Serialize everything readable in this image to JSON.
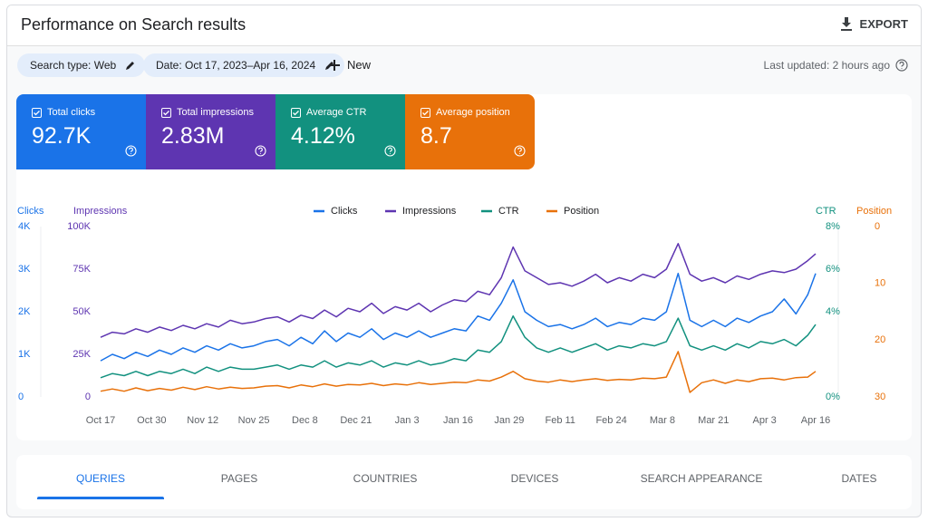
{
  "header": {
    "title": "Performance on Search results",
    "export": "EXPORT"
  },
  "filters": {
    "chips": [
      "Search type: Web",
      "Date: Oct 17, 2023–Apr 16, 2024"
    ],
    "new": "New",
    "last_updated": "Last updated: 2 hours ago"
  },
  "metrics": [
    {
      "label": "Total clicks",
      "value": "92.7K",
      "color": "#1a73e8"
    },
    {
      "label": "Total impressions",
      "value": "2.83M",
      "color": "#5e35b1"
    },
    {
      "label": "Average CTR",
      "value": "4.12%",
      "color": "#12917f"
    },
    {
      "label": "Average position",
      "value": "8.7",
      "color": "#e8710a"
    }
  ],
  "chart_data": {
    "type": "line",
    "legend": "top",
    "x": [
      0,
      3,
      6,
      9,
      12,
      15,
      18,
      21,
      24,
      27,
      30,
      33,
      36,
      39,
      42,
      45,
      48,
      51,
      54,
      57,
      60,
      63,
      66,
      69,
      72,
      75,
      78,
      81,
      84,
      87,
      90,
      93,
      96,
      99,
      102,
      105,
      108,
      111,
      114,
      117,
      120,
      123,
      126,
      129,
      132,
      135,
      138,
      141,
      144,
      147,
      150,
      153,
      156,
      159,
      162,
      165,
      168,
      171,
      174,
      177,
      180,
      182
    ],
    "xlim": [
      0,
      182
    ],
    "xticks": [
      {
        "value": 0,
        "label": "Oct 17"
      },
      {
        "value": 13,
        "label": "Oct 30"
      },
      {
        "value": 26,
        "label": "Nov 12"
      },
      {
        "value": 39,
        "label": "Nov 25"
      },
      {
        "value": 52,
        "label": "Dec 8"
      },
      {
        "value": 65,
        "label": "Dec 21"
      },
      {
        "value": 78,
        "label": "Jan 3"
      },
      {
        "value": 91,
        "label": "Jan 16"
      },
      {
        "value": 104,
        "label": "Jan 29"
      },
      {
        "value": 117,
        "label": "Feb 11"
      },
      {
        "value": 130,
        "label": "Feb 24"
      },
      {
        "value": 143,
        "label": "Mar 8"
      },
      {
        "value": 156,
        "label": "Mar 21"
      },
      {
        "value": 169,
        "label": "Apr 3"
      },
      {
        "value": 182,
        "label": "Apr 16"
      }
    ],
    "axes": [
      {
        "label": "Clicks",
        "color": "#1a73e8",
        "ylim": [
          0,
          4000
        ],
        "yticks": [
          0,
          {
            "value": 1000,
            "label": "1K"
          },
          {
            "value": 2000,
            "label": "2K"
          },
          {
            "value": 3000,
            "label": "3K"
          },
          {
            "value": 4000,
            "label": "4K"
          }
        ]
      },
      {
        "label": "Impressions",
        "color": "#5e35b1",
        "ylim": [
          0,
          100000
        ],
        "yticks": [
          0,
          {
            "value": 25000,
            "label": "25K"
          },
          {
            "value": 50000,
            "label": "50K"
          },
          {
            "value": 75000,
            "label": "75K"
          },
          {
            "value": 100000,
            "label": "100K"
          }
        ]
      },
      {
        "label": "CTR",
        "color": "#12917f",
        "ylim": [
          0,
          8
        ],
        "yticks": [
          {
            "value": 0,
            "label": "0%"
          },
          {
            "value": 4,
            "label": "4%"
          },
          {
            "value": 6,
            "label": "6%"
          },
          {
            "value": 8,
            "label": "8%"
          }
        ]
      },
      {
        "label": "Position",
        "color": "#e8710a",
        "ylim": [
          30,
          0
        ],
        "yticks": [
          0,
          10,
          20,
          30
        ]
      }
    ],
    "series": [
      {
        "name": "Clicks",
        "color": "#1a73e8",
        "axis": 0,
        "values": [
          850,
          1000,
          900,
          1050,
          950,
          1100,
          1000,
          1150,
          1050,
          1200,
          1100,
          1250,
          1150,
          1200,
          1300,
          1350,
          1200,
          1400,
          1250,
          1550,
          1300,
          1500,
          1400,
          1600,
          1350,
          1500,
          1400,
          1550,
          1400,
          1500,
          1600,
          1550,
          1900,
          1800,
          2200,
          2750,
          2000,
          1800,
          1650,
          1700,
          1600,
          1700,
          1850,
          1650,
          1750,
          1700,
          1850,
          1800,
          2000,
          2900,
          1800,
          1650,
          1800,
          1650,
          1850,
          1750,
          1900,
          2000,
          2300,
          1950,
          2400,
          2900
        ]
      },
      {
        "name": "Impressions",
        "color": "#5e35b1",
        "axis": 1,
        "values": [
          35000,
          38000,
          37000,
          40000,
          38000,
          41000,
          39000,
          42000,
          40000,
          43000,
          41000,
          45000,
          43000,
          44000,
          46000,
          47000,
          44000,
          48000,
          46000,
          51000,
          47000,
          52000,
          50000,
          55000,
          49000,
          53000,
          51000,
          55000,
          50000,
          54000,
          57000,
          56000,
          62000,
          60000,
          70000,
          88000,
          74000,
          70000,
          66000,
          67000,
          65000,
          68000,
          72000,
          67000,
          70000,
          68000,
          72000,
          70000,
          75000,
          90000,
          72000,
          68000,
          70000,
          67000,
          71000,
          69000,
          72000,
          74000,
          73000,
          75000,
          80000,
          84000
        ]
      },
      {
        "name": "CTR",
        "color": "#12917f",
        "axis": 2,
        "values": [
          0.9,
          1.1,
          1.0,
          1.2,
          1.0,
          1.2,
          1.1,
          1.3,
          1.1,
          1.4,
          1.2,
          1.4,
          1.3,
          1.3,
          1.4,
          1.5,
          1.3,
          1.5,
          1.4,
          1.7,
          1.4,
          1.6,
          1.5,
          1.7,
          1.4,
          1.6,
          1.5,
          1.7,
          1.5,
          1.6,
          1.8,
          1.7,
          2.2,
          2.1,
          2.6,
          3.8,
          2.8,
          2.3,
          2.1,
          2.3,
          2.1,
          2.3,
          2.5,
          2.2,
          2.4,
          2.3,
          2.5,
          2.4,
          2.6,
          3.7,
          2.4,
          2.2,
          2.4,
          2.2,
          2.5,
          2.3,
          2.6,
          2.5,
          2.7,
          2.4,
          2.9,
          3.4
        ]
      },
      {
        "name": "Position",
        "color": "#e8710a",
        "axis": 3,
        "values": [
          29.0,
          28.6,
          29.0,
          28.4,
          28.9,
          28.5,
          28.8,
          28.3,
          28.7,
          28.2,
          28.6,
          28.3,
          28.5,
          28.4,
          28.1,
          28.0,
          28.4,
          27.9,
          28.2,
          27.7,
          28.1,
          27.8,
          27.9,
          27.6,
          28.0,
          27.7,
          27.9,
          27.5,
          27.8,
          27.6,
          27.4,
          27.5,
          27.0,
          27.2,
          26.5,
          25.5,
          26.8,
          27.2,
          27.4,
          27.0,
          27.3,
          27.0,
          26.8,
          27.1,
          26.9,
          27.0,
          26.7,
          26.8,
          26.5,
          22.0,
          29.2,
          27.5,
          27.0,
          27.6,
          27.0,
          27.3,
          26.8,
          26.7,
          27.0,
          26.6,
          26.5,
          25.5
        ]
      }
    ]
  },
  "tabs": {
    "items": [
      "QUERIES",
      "PAGES",
      "COUNTRIES",
      "DEVICES",
      "SEARCH APPEARANCE",
      "DATES"
    ],
    "active": 0
  }
}
